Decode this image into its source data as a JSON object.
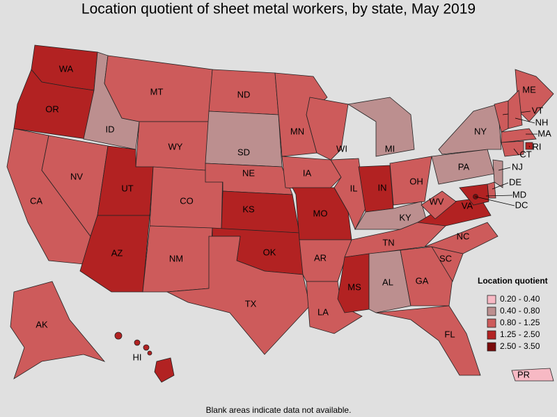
{
  "title": "Location quotient of sheet metal workers, by state, May 2019",
  "legend": {
    "title": "Location quotient",
    "items": [
      {
        "label": "0.20 - 0.40",
        "color": "#f7b9c4"
      },
      {
        "label": "0.40 - 0.80",
        "color": "#bc8f8f"
      },
      {
        "label": "0.80 - 1.25",
        "color": "#cd5b5b"
      },
      {
        "label": "1.25 - 2.50",
        "color": "#b22222"
      },
      {
        "label": "2.50 - 3.50",
        "color": "#7a0a0a"
      }
    ]
  },
  "states": [
    {
      "label": "WA",
      "color": "#b22222"
    },
    {
      "label": "OR",
      "color": "#b22222"
    },
    {
      "label": "CA",
      "color": "#cd5b5b"
    },
    {
      "label": "NV",
      "color": "#cd5b5b"
    },
    {
      "label": "ID",
      "color": "#bc8f8f"
    },
    {
      "label": "MT",
      "color": "#cd5b5b"
    },
    {
      "label": "WY",
      "color": "#cd5b5b"
    },
    {
      "label": "UT",
      "color": "#b22222"
    },
    {
      "label": "AZ",
      "color": "#b22222"
    },
    {
      "label": "CO",
      "color": "#cd5b5b"
    },
    {
      "label": "NM",
      "color": "#cd5b5b"
    },
    {
      "label": "ND",
      "color": "#cd5b5b"
    },
    {
      "label": "SD",
      "color": "#bc8f8f"
    },
    {
      "label": "NE",
      "color": "#cd5b5b"
    },
    {
      "label": "KS",
      "color": "#b22222"
    },
    {
      "label": "OK",
      "color": "#b22222"
    },
    {
      "label": "TX",
      "color": "#cd5b5b"
    },
    {
      "label": "MN",
      "color": "#cd5b5b"
    },
    {
      "label": "IA",
      "color": "#cd5b5b"
    },
    {
      "label": "MO",
      "color": "#b22222"
    },
    {
      "label": "AR",
      "color": "#cd5b5b"
    },
    {
      "label": "LA",
      "color": "#cd5b5b"
    },
    {
      "label": "WI",
      "color": "#cd5b5b"
    },
    {
      "label": "IL",
      "color": "#cd5b5b"
    },
    {
      "label": "MI",
      "color": "#bc8f8f"
    },
    {
      "label": "IN",
      "color": "#b22222"
    },
    {
      "label": "OH",
      "color": "#cd5b5b"
    },
    {
      "label": "KY",
      "color": "#bc8f8f"
    },
    {
      "label": "TN",
      "color": "#cd5b5b"
    },
    {
      "label": "MS",
      "color": "#b22222"
    },
    {
      "label": "AL",
      "color": "#bc8f8f"
    },
    {
      "label": "GA",
      "color": "#cd5b5b"
    },
    {
      "label": "FL",
      "color": "#cd5b5b"
    },
    {
      "label": "SC",
      "color": "#cd5b5b"
    },
    {
      "label": "NC",
      "color": "#cd5b5b"
    },
    {
      "label": "VA",
      "color": "#b22222"
    },
    {
      "label": "WV",
      "color": "#cd5b5b"
    },
    {
      "label": "PA",
      "color": "#bc8f8f"
    },
    {
      "label": "NY",
      "color": "#bc8f8f"
    },
    {
      "label": "ME",
      "color": "#cd5b5b"
    },
    {
      "label": "VT",
      "color": "#cd5b5b"
    },
    {
      "label": "NH",
      "color": "#cd5b5b"
    },
    {
      "label": "MA",
      "color": "#cd5b5b"
    },
    {
      "label": "RI",
      "color": "#b22222"
    },
    {
      "label": "CT",
      "color": "#cd5b5b"
    },
    {
      "label": "NJ",
      "color": "#bc8f8f"
    },
    {
      "label": "DE",
      "color": "#cd5b5b"
    },
    {
      "label": "MD",
      "color": "#b22222"
    },
    {
      "label": "DC",
      "color": "#7a0a0a"
    },
    {
      "label": "AK",
      "color": "#cd5b5b"
    },
    {
      "label": "HI",
      "color": "#b22222"
    },
    {
      "label": "PR",
      "color": "#f7b9c4"
    }
  ],
  "footnote": "Blank areas indicate data not available."
}
